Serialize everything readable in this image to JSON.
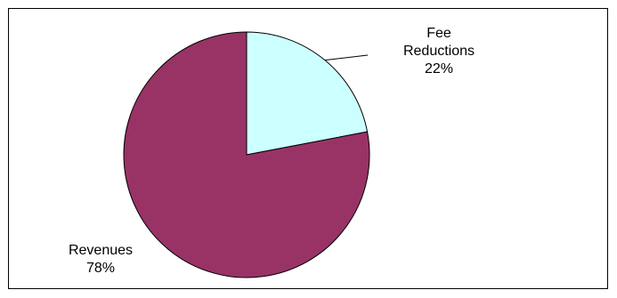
{
  "chart_data": {
    "type": "pie",
    "title": "",
    "start_angle_deg": 0,
    "direction": "clockwise",
    "slices": [
      {
        "label": "Fee Reductions",
        "label_lines": [
          "Fee",
          "Reductions"
        ],
        "value": 22,
        "percent_label": "22%",
        "color": "#ccffff"
      },
      {
        "label": "Revenues",
        "label_lines": [
          "Revenues"
        ],
        "value": 78,
        "percent_label": "78%",
        "color": "#993366"
      }
    ],
    "outline_color": "#000000",
    "legend": "none"
  }
}
